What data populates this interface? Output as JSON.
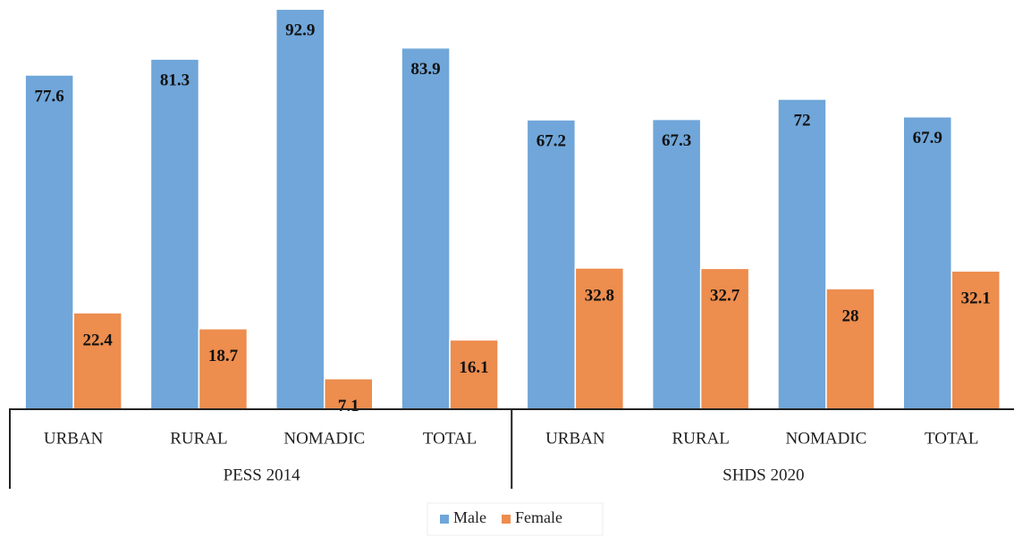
{
  "chart_data": {
    "type": "bar",
    "groups": [
      {
        "label": "PESS 2014",
        "categories": [
          "URBAN",
          "RURAL",
          "NOMADIC",
          "TOTAL"
        ]
      },
      {
        "label": "SHDS 2020",
        "categories": [
          "URBAN",
          "RURAL",
          "NOMADIC",
          "TOTAL"
        ]
      }
    ],
    "series": [
      {
        "name": "Male",
        "color": "#70a6d9",
        "values": [
          77.6,
          81.3,
          92.9,
          83.9,
          67.2,
          67.3,
          72,
          67.9
        ]
      },
      {
        "name": "Female",
        "color": "#ed8d4e",
        "values": [
          22.4,
          18.7,
          7.1,
          16.1,
          32.8,
          32.7,
          28,
          32.1
        ]
      }
    ],
    "legend": "bottom"
  }
}
